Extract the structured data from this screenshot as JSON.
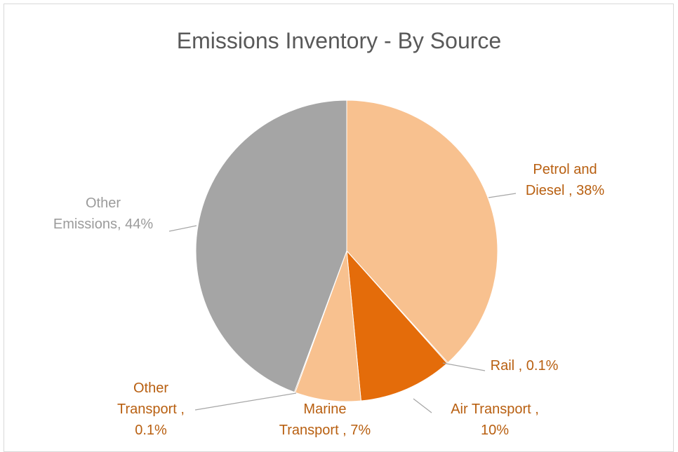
{
  "chart_data": {
    "type": "pie",
    "title": "Emissions Inventory - By Source",
    "slices": [
      {
        "label_lines": [
          "Petrol and",
          "Diesel , 38%"
        ],
        "value": 38,
        "color": "#f8c18f",
        "label_color": "#b85f10"
      },
      {
        "label_lines": [
          "Rail , 0.1%"
        ],
        "value": 0.1,
        "color": "#e0701a",
        "label_color": "#b85f10"
      },
      {
        "label_lines": [
          "Air Transport ,",
          "10%"
        ],
        "value": 10,
        "color": "#e46c0a",
        "label_color": "#b85f10"
      },
      {
        "label_lines": [
          "Marine",
          "Transport , 7%"
        ],
        "value": 7,
        "color": "#f8c18f",
        "label_color": "#b85f10"
      },
      {
        "label_lines": [
          "Other",
          "Transport ,",
          "0.1%"
        ],
        "value": 0.1,
        "color": "#b0743c",
        "label_color": "#b85f10"
      },
      {
        "label_lines": [
          "Other",
          "Emissions, 44%"
        ],
        "value": 44,
        "color": "#a5a5a5",
        "label_color": "#9b9b9b"
      }
    ]
  }
}
